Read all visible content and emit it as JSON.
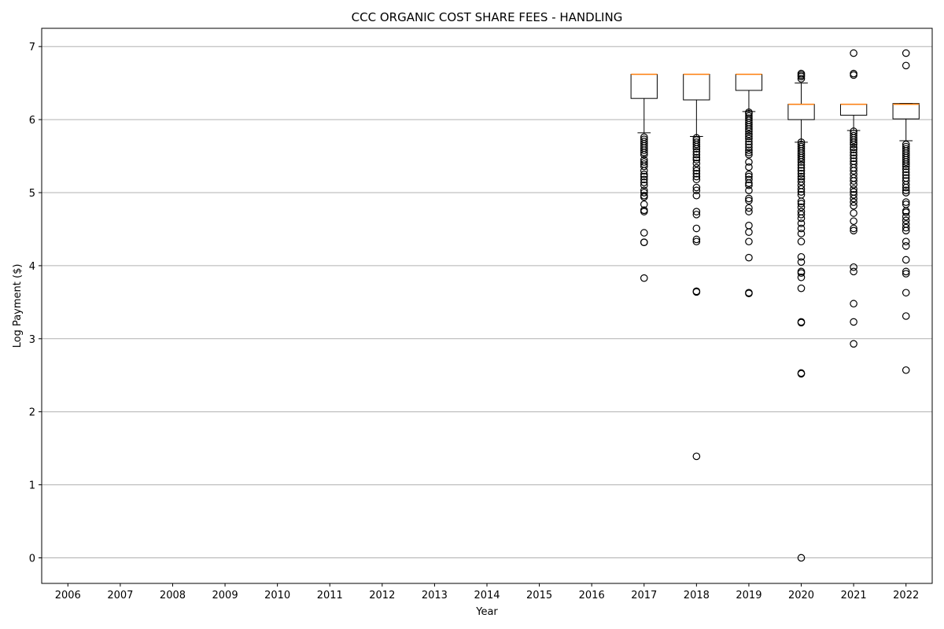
{
  "chart_data": {
    "type": "box",
    "title": "CCC ORGANIC COST SHARE FEES - HANDLING",
    "xlabel": "Year",
    "ylabel": "Log Payment ($)",
    "categories": [
      "2006",
      "2007",
      "2008",
      "2009",
      "2010",
      "2011",
      "2012",
      "2013",
      "2014",
      "2015",
      "2016",
      "2017",
      "2018",
      "2019",
      "2020",
      "2021",
      "2022"
    ],
    "ylim": [
      -0.35,
      7.25
    ],
    "yticks": [
      0,
      1,
      2,
      3,
      4,
      5,
      6,
      7
    ],
    "grid": "y",
    "boxes": [
      {
        "category": "2017",
        "whisker_low": 5.82,
        "q1": 6.29,
        "median": 6.62,
        "q3": 6.62,
        "whisker_high": 6.62,
        "outliers": [
          5.76,
          5.73,
          5.7,
          5.67,
          5.64,
          5.61,
          5.58,
          5.55,
          5.52,
          5.45,
          5.42,
          5.39,
          5.36,
          5.3,
          5.25,
          5.22,
          5.18,
          5.14,
          5.1,
          5.03,
          5.0,
          4.96,
          4.94,
          4.84,
          4.76,
          4.74,
          4.45,
          4.32,
          4.32,
          3.83
        ]
      },
      {
        "category": "2018",
        "whisker_low": 5.77,
        "q1": 6.27,
        "median": 6.62,
        "q3": 6.62,
        "whisker_high": 6.62,
        "outliers": [
          5.75,
          5.72,
          5.69,
          5.66,
          5.63,
          5.6,
          5.56,
          5.52,
          5.48,
          5.45,
          5.4,
          5.34,
          5.3,
          5.26,
          5.22,
          5.18,
          5.07,
          5.03,
          4.96,
          4.74,
          4.7,
          4.51,
          4.36,
          4.33,
          3.65,
          3.64,
          1.39
        ]
      },
      {
        "category": "2019",
        "whisker_low": 6.11,
        "q1": 6.4,
        "median": 6.62,
        "q3": 6.62,
        "whisker_high": 6.62,
        "outliers": [
          6.1,
          6.08,
          6.05,
          6.02,
          5.99,
          5.96,
          5.93,
          5.9,
          5.87,
          5.84,
          5.8,
          5.77,
          5.74,
          5.7,
          5.66,
          5.62,
          5.58,
          5.55,
          5.52,
          5.42,
          5.35,
          5.25,
          5.22,
          5.18,
          5.13,
          5.1,
          5.03,
          4.92,
          4.89,
          4.79,
          4.74,
          4.55,
          4.46,
          4.33,
          4.11,
          3.63,
          3.62
        ]
      },
      {
        "category": "2020",
        "whisker_low": 5.69,
        "q1": 6.0,
        "median": 6.21,
        "q3": 6.21,
        "whisker_high": 6.5,
        "outliers": [
          6.63,
          6.61,
          6.59,
          6.56,
          5.69,
          5.66,
          5.63,
          5.6,
          5.57,
          5.54,
          5.51,
          5.48,
          5.45,
          5.42,
          5.38,
          5.34,
          5.3,
          5.26,
          5.22,
          5.19,
          5.15,
          5.1,
          5.05,
          5.01,
          4.97,
          4.88,
          4.85,
          4.8,
          4.74,
          4.7,
          4.65,
          4.58,
          4.51,
          4.44,
          4.33,
          4.12,
          4.05,
          3.92,
          3.9,
          3.84,
          3.69,
          3.23,
          3.22,
          2.53,
          2.52,
          0.0
        ]
      },
      {
        "category": "2021",
        "whisker_low": 5.85,
        "q1": 6.06,
        "median": 6.21,
        "q3": 6.21,
        "whisker_high": 6.21,
        "outliers": [
          6.91,
          6.63,
          6.61,
          5.84,
          5.81,
          5.78,
          5.75,
          5.72,
          5.69,
          5.66,
          5.62,
          5.59,
          5.55,
          5.51,
          5.47,
          5.43,
          5.39,
          5.34,
          5.3,
          5.25,
          5.2,
          5.16,
          5.11,
          5.05,
          5.01,
          4.97,
          4.92,
          4.87,
          4.82,
          4.72,
          4.61,
          4.51,
          4.48,
          3.98,
          3.92,
          3.48,
          3.23,
          2.93
        ]
      },
      {
        "category": "2022",
        "whisker_low": 5.71,
        "q1": 6.01,
        "median": 6.21,
        "q3": 6.22,
        "whisker_high": 6.22,
        "outliers": [
          6.91,
          6.74,
          5.66,
          5.63,
          5.6,
          5.57,
          5.54,
          5.51,
          5.48,
          5.45,
          5.42,
          5.39,
          5.36,
          5.32,
          5.28,
          5.24,
          5.2,
          5.16,
          5.11,
          5.07,
          5.03,
          5.0,
          4.87,
          4.84,
          4.75,
          4.73,
          4.67,
          4.62,
          4.57,
          4.52,
          4.48,
          4.33,
          4.27,
          4.08,
          3.92,
          3.89,
          3.63,
          3.31,
          2.57
        ]
      }
    ],
    "colors": {
      "box": "#000000",
      "median": "#ff7f0e",
      "grid": "#b0b0b0"
    }
  }
}
